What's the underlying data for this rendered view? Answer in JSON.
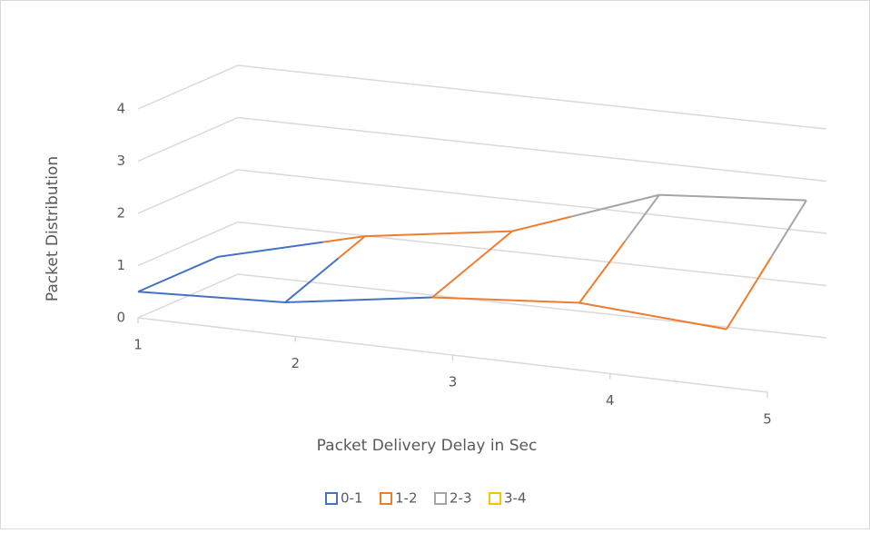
{
  "chart_data": {
    "type": "surface",
    "x_label": "Packet Delivery Delay in Sec",
    "y_label": "Packet Distribution",
    "categories": [
      "1",
      "2",
      "3",
      "4",
      "5"
    ],
    "series": [
      {
        "values": [
          0.5,
          0.6,
          1.0,
          1.2,
          1.0
        ]
      },
      {
        "values": [
          0.5,
          1.2,
          1.6,
          2.6,
          2.8
        ]
      }
    ],
    "ylim": [
      0,
      4
    ],
    "yticks": [
      0,
      1,
      2,
      3,
      4
    ],
    "grid": true,
    "legend": "bottom",
    "bands": [
      {
        "label": "0-1",
        "color": "#4472c4"
      },
      {
        "label": "1-2",
        "color": "#ed7d31"
      },
      {
        "label": "2-3",
        "color": "#a5a5a5"
      },
      {
        "label": "3-4",
        "color": "#ffc000"
      }
    ]
  }
}
